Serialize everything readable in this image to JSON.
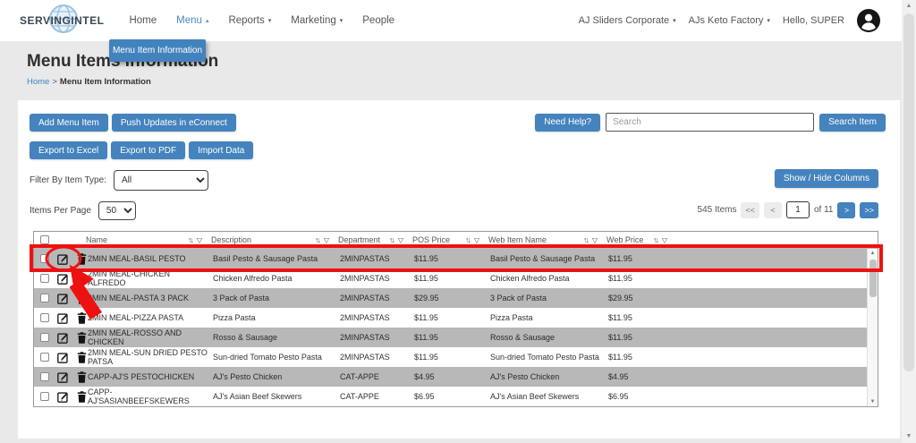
{
  "navbar": {
    "brand": "SERVINGINTEL",
    "items": [
      {
        "label": "Home",
        "caret": "",
        "active": false
      },
      {
        "label": "Menu",
        "caret": "up",
        "active": true
      },
      {
        "label": "Reports",
        "caret": "down",
        "active": false
      },
      {
        "label": "Marketing",
        "caret": "down",
        "active": false
      },
      {
        "label": "People",
        "caret": "",
        "active": false
      }
    ],
    "right": [
      {
        "label": "AJ Sliders Corporate",
        "caret": "down"
      },
      {
        "label": "AJs Keto Factory",
        "caret": "down"
      },
      {
        "label": "Hello, SUPER",
        "caret": ""
      }
    ]
  },
  "tooltip": "Menu Item Information",
  "page": {
    "title": "Menu Items Information",
    "breadcrumb_home": "Home",
    "breadcrumb_sep": ">",
    "breadcrumb_current": "Menu Item Information"
  },
  "toolbar": {
    "add_menu_item": "Add Menu Item",
    "push_updates": "Push Updates in eConnect",
    "export_excel": "Export to Excel",
    "export_pdf": "Export to PDF",
    "import_data": "Import Data",
    "need_help": "Need Help?",
    "search_placeholder": "Search",
    "search_item": "Search Item",
    "show_hide_columns": "Show / Hide Columns"
  },
  "filter": {
    "label": "Filter By Item Type:",
    "value": "All"
  },
  "per_page": {
    "label": "Items Per Page",
    "value": "50"
  },
  "pagination": {
    "total": "545 Items",
    "first": "<<",
    "prev": "<",
    "page": "1",
    "of": "of 11",
    "next": ">",
    "last": ">>"
  },
  "table": {
    "sort_icon": "↑↓",
    "filter_icon": "▽",
    "headers": {
      "name": "Name",
      "description": "Description",
      "department": "Department",
      "pos_price": "POS Price",
      "web_item_name": "Web Item Name",
      "web_price": "Web Price"
    },
    "rows": [
      {
        "name": "2MIN MEAL-BASIL PESTO",
        "description": "Basil Pesto & Sausage Pasta",
        "department": "2MINPASTAS",
        "pos_price": "$11.95",
        "web_item_name": "Basil Pesto & Sausage Pasta",
        "web_price": "$11.95",
        "shaded": true,
        "highlighted": true
      },
      {
        "name": "2MIN MEAL-CHICKEN ALFREDO",
        "description": "Chicken Alfredo Pasta",
        "department": "2MINPASTAS",
        "pos_price": "$11.95",
        "web_item_name": "Chicken Alfredo Pasta",
        "web_price": "$11.95",
        "shaded": false,
        "highlighted": false
      },
      {
        "name": "2MIN MEAL-PASTA 3 PACK",
        "description": "3 Pack of Pasta",
        "department": "2MINPASTAS",
        "pos_price": "$29.95",
        "web_item_name": "3 Pack of Pasta",
        "web_price": "$29.95",
        "shaded": true,
        "highlighted": false
      },
      {
        "name": "2MIN MEAL-PIZZA PASTA",
        "description": "Pizza Pasta",
        "department": "2MINPASTAS",
        "pos_price": "$11.95",
        "web_item_name": "Pizza Pasta",
        "web_price": "$11.95",
        "shaded": false,
        "highlighted": false
      },
      {
        "name": "2MIN MEAL-ROSSO AND CHICKEN",
        "description": "Rosso & Sausage",
        "department": "2MINPASTAS",
        "pos_price": "$11.95",
        "web_item_name": "Rosso & Sausage",
        "web_price": "$11.95",
        "shaded": true,
        "highlighted": false
      },
      {
        "name": "2MIN MEAL-SUN DRIED PESTO PATSA",
        "description": "Sun-dried Tomato Pesto Pasta",
        "department": "2MINPASTAS",
        "pos_price": "$11.95",
        "web_item_name": "Sun-dried Tomato Pesto Pasta",
        "web_price": "$11.95",
        "shaded": false,
        "highlighted": false
      },
      {
        "name": "CAPP-AJ'S PESTOCHICKEN",
        "description": "AJ's Pesto Chicken",
        "department": "CAT-APPE",
        "pos_price": "$4.95",
        "web_item_name": "AJ's Pesto Chicken",
        "web_price": "$4.95",
        "shaded": true,
        "highlighted": false
      },
      {
        "name": "CAPP-AJ'SASIANBEEFSKEWERS",
        "description": "AJ's Asian Beef Skewers",
        "department": "CAT-APPE",
        "pos_price": "$6.95",
        "web_item_name": "AJ's Asian Beef Skewers",
        "web_price": "$6.95",
        "shaded": false,
        "highlighted": false
      }
    ]
  },
  "colors": {
    "accent_blue": "#4483bd",
    "shaded_row": "#b8b8b8",
    "annotation_red": "#ee1111",
    "page_background": "#e9e9e9"
  }
}
